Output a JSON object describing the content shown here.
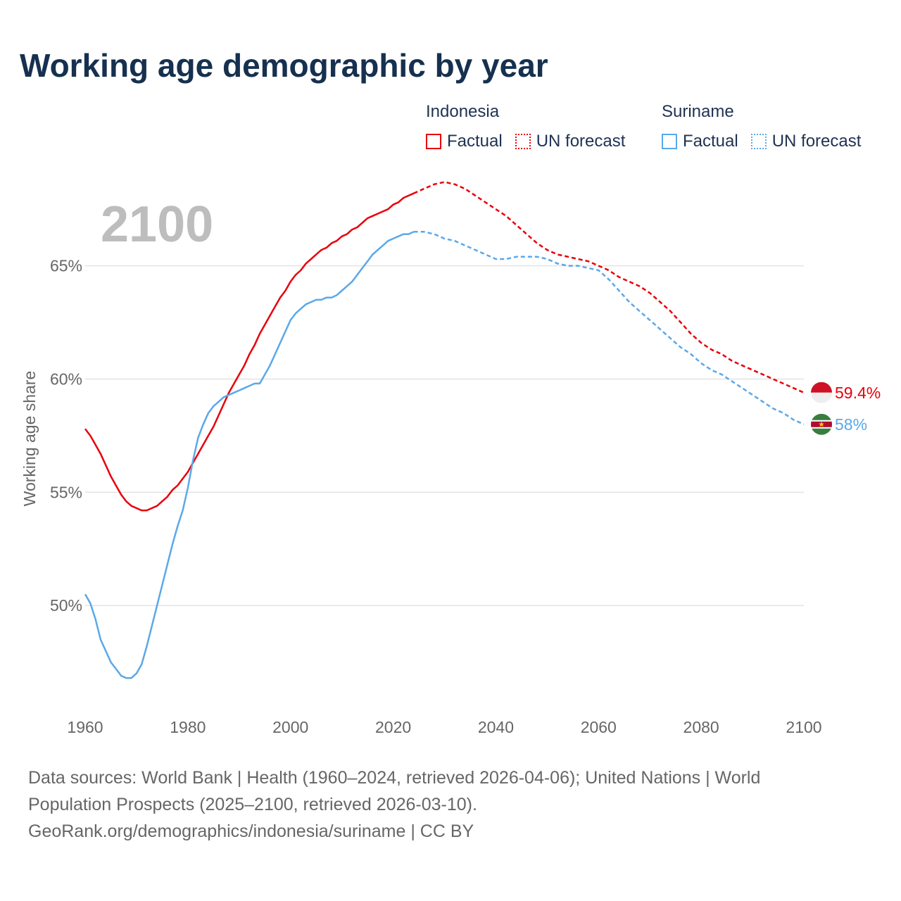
{
  "title": "Working age demographic by year",
  "legend": {
    "groups": [
      {
        "name": "Indonesia",
        "color": "#e8000b",
        "items": [
          {
            "label": "Factual",
            "style": "solid"
          },
          {
            "label": "UN forecast",
            "style": "dotted"
          }
        ]
      },
      {
        "name": "Suriname",
        "color": "#5ba8e8",
        "items": [
          {
            "label": "Factual",
            "style": "solid"
          },
          {
            "label": "UN forecast",
            "style": "dotted"
          }
        ]
      }
    ]
  },
  "year_label": "2100",
  "footer": {
    "line1": "Data sources: World Bank | Health (1960–2024, retrieved 2026-04-06); United Nations | World",
    "line2": "Population Prospects (2025–2100, retrieved 2026-03-10).",
    "line3": "GeoRank.org/demographics/indonesia/suriname | CC BY"
  },
  "chart_data": {
    "type": "line",
    "title": "Working age demographic by year",
    "xlabel": "",
    "ylabel": "Working age share",
    "xlim": [
      1960,
      2100
    ],
    "ylim": [
      45.5,
      68.5
    ],
    "grid": true,
    "x_ticks": [
      1960,
      1980,
      2000,
      2020,
      2040,
      2060,
      2080,
      2100
    ],
    "x_tick_labels": [
      "1960",
      "1980",
      "2000",
      "2020",
      "2040",
      "2060",
      "2080",
      "2100"
    ],
    "y_ticks": [
      50,
      55,
      60,
      65
    ],
    "y_tick_labels": [
      "50%",
      "55%",
      "60%",
      "65%"
    ],
    "forecast_start": 2024,
    "series": [
      {
        "name": "Indonesia",
        "color": "#e8000b",
        "end_label": "59.4%",
        "points": [
          [
            1960,
            57.8
          ],
          [
            1961,
            57.5
          ],
          [
            1962,
            57.1
          ],
          [
            1963,
            56.7
          ],
          [
            1964,
            56.2
          ],
          [
            1965,
            55.7
          ],
          [
            1966,
            55.3
          ],
          [
            1967,
            54.9
          ],
          [
            1968,
            54.6
          ],
          [
            1969,
            54.4
          ],
          [
            1970,
            54.3
          ],
          [
            1971,
            54.2
          ],
          [
            1972,
            54.2
          ],
          [
            1973,
            54.3
          ],
          [
            1974,
            54.4
          ],
          [
            1975,
            54.6
          ],
          [
            1976,
            54.8
          ],
          [
            1977,
            55.1
          ],
          [
            1978,
            55.3
          ],
          [
            1979,
            55.6
          ],
          [
            1980,
            55.9
          ],
          [
            1981,
            56.3
          ],
          [
            1982,
            56.7
          ],
          [
            1983,
            57.1
          ],
          [
            1984,
            57.5
          ],
          [
            1985,
            57.9
          ],
          [
            1986,
            58.4
          ],
          [
            1987,
            58.9
          ],
          [
            1988,
            59.4
          ],
          [
            1989,
            59.8
          ],
          [
            1990,
            60.2
          ],
          [
            1991,
            60.6
          ],
          [
            1992,
            61.1
          ],
          [
            1993,
            61.5
          ],
          [
            1994,
            62.0
          ],
          [
            1995,
            62.4
          ],
          [
            1996,
            62.8
          ],
          [
            1997,
            63.2
          ],
          [
            1998,
            63.6
          ],
          [
            1999,
            63.9
          ],
          [
            2000,
            64.3
          ],
          [
            2001,
            64.6
          ],
          [
            2002,
            64.8
          ],
          [
            2003,
            65.1
          ],
          [
            2004,
            65.3
          ],
          [
            2005,
            65.5
          ],
          [
            2006,
            65.7
          ],
          [
            2007,
            65.8
          ],
          [
            2008,
            66.0
          ],
          [
            2009,
            66.1
          ],
          [
            2010,
            66.3
          ],
          [
            2011,
            66.4
          ],
          [
            2012,
            66.6
          ],
          [
            2013,
            66.7
          ],
          [
            2014,
            66.9
          ],
          [
            2015,
            67.1
          ],
          [
            2016,
            67.2
          ],
          [
            2017,
            67.3
          ],
          [
            2018,
            67.4
          ],
          [
            2019,
            67.5
          ],
          [
            2020,
            67.7
          ],
          [
            2021,
            67.8
          ],
          [
            2022,
            68.0
          ],
          [
            2023,
            68.1
          ],
          [
            2024,
            68.2
          ],
          [
            2026,
            68.4
          ],
          [
            2028,
            68.6
          ],
          [
            2030,
            68.7
          ],
          [
            2032,
            68.6
          ],
          [
            2034,
            68.4
          ],
          [
            2036,
            68.1
          ],
          [
            2038,
            67.8
          ],
          [
            2040,
            67.5
          ],
          [
            2042,
            67.2
          ],
          [
            2044,
            66.8
          ],
          [
            2046,
            66.4
          ],
          [
            2048,
            66.0
          ],
          [
            2050,
            65.7
          ],
          [
            2052,
            65.5
          ],
          [
            2054,
            65.4
          ],
          [
            2056,
            65.3
          ],
          [
            2058,
            65.2
          ],
          [
            2060,
            65.0
          ],
          [
            2062,
            64.8
          ],
          [
            2064,
            64.5
          ],
          [
            2066,
            64.3
          ],
          [
            2068,
            64.1
          ],
          [
            2070,
            63.8
          ],
          [
            2072,
            63.4
          ],
          [
            2074,
            63.0
          ],
          [
            2076,
            62.5
          ],
          [
            2078,
            62.0
          ],
          [
            2080,
            61.6
          ],
          [
            2082,
            61.3
          ],
          [
            2084,
            61.1
          ],
          [
            2086,
            60.8
          ],
          [
            2088,
            60.6
          ],
          [
            2090,
            60.4
          ],
          [
            2092,
            60.2
          ],
          [
            2094,
            60.0
          ],
          [
            2096,
            59.8
          ],
          [
            2098,
            59.6
          ],
          [
            2100,
            59.4
          ]
        ]
      },
      {
        "name": "Suriname",
        "color": "#5ba8e8",
        "end_label": "58%",
        "points": [
          [
            1960,
            50.5
          ],
          [
            1961,
            50.1
          ],
          [
            1962,
            49.4
          ],
          [
            1963,
            48.5
          ],
          [
            1964,
            48.0
          ],
          [
            1965,
            47.5
          ],
          [
            1966,
            47.2
          ],
          [
            1967,
            46.9
          ],
          [
            1968,
            46.8
          ],
          [
            1969,
            46.8
          ],
          [
            1970,
            47.0
          ],
          [
            1971,
            47.4
          ],
          [
            1972,
            48.2
          ],
          [
            1973,
            49.1
          ],
          [
            1974,
            50.0
          ],
          [
            1975,
            50.9
          ],
          [
            1976,
            51.8
          ],
          [
            1977,
            52.7
          ],
          [
            1978,
            53.5
          ],
          [
            1979,
            54.2
          ],
          [
            1980,
            55.2
          ],
          [
            1981,
            56.4
          ],
          [
            1982,
            57.4
          ],
          [
            1983,
            58.0
          ],
          [
            1984,
            58.5
          ],
          [
            1985,
            58.8
          ],
          [
            1986,
            59.0
          ],
          [
            1987,
            59.2
          ],
          [
            1988,
            59.3
          ],
          [
            1989,
            59.4
          ],
          [
            1990,
            59.5
          ],
          [
            1991,
            59.6
          ],
          [
            1992,
            59.7
          ],
          [
            1993,
            59.8
          ],
          [
            1994,
            59.8
          ],
          [
            1995,
            60.2
          ],
          [
            1996,
            60.6
          ],
          [
            1997,
            61.1
          ],
          [
            1998,
            61.6
          ],
          [
            1999,
            62.1
          ],
          [
            2000,
            62.6
          ],
          [
            2001,
            62.9
          ],
          [
            2002,
            63.1
          ],
          [
            2003,
            63.3
          ],
          [
            2004,
            63.4
          ],
          [
            2005,
            63.5
          ],
          [
            2006,
            63.5
          ],
          [
            2007,
            63.6
          ],
          [
            2008,
            63.6
          ],
          [
            2009,
            63.7
          ],
          [
            2010,
            63.9
          ],
          [
            2011,
            64.1
          ],
          [
            2012,
            64.3
          ],
          [
            2013,
            64.6
          ],
          [
            2014,
            64.9
          ],
          [
            2015,
            65.2
          ],
          [
            2016,
            65.5
          ],
          [
            2017,
            65.7
          ],
          [
            2018,
            65.9
          ],
          [
            2019,
            66.1
          ],
          [
            2020,
            66.2
          ],
          [
            2021,
            66.3
          ],
          [
            2022,
            66.4
          ],
          [
            2023,
            66.4
          ],
          [
            2024,
            66.5
          ],
          [
            2026,
            66.5
          ],
          [
            2028,
            66.4
          ],
          [
            2030,
            66.2
          ],
          [
            2032,
            66.1
          ],
          [
            2034,
            65.9
          ],
          [
            2036,
            65.7
          ],
          [
            2038,
            65.5
          ],
          [
            2040,
            65.3
          ],
          [
            2042,
            65.3
          ],
          [
            2044,
            65.4
          ],
          [
            2046,
            65.4
          ],
          [
            2048,
            65.4
          ],
          [
            2050,
            65.3
          ],
          [
            2052,
            65.1
          ],
          [
            2054,
            65.0
          ],
          [
            2056,
            65.0
          ],
          [
            2058,
            64.9
          ],
          [
            2060,
            64.8
          ],
          [
            2062,
            64.4
          ],
          [
            2064,
            63.9
          ],
          [
            2066,
            63.4
          ],
          [
            2068,
            63.0
          ],
          [
            2070,
            62.6
          ],
          [
            2072,
            62.2
          ],
          [
            2074,
            61.8
          ],
          [
            2076,
            61.4
          ],
          [
            2078,
            61.1
          ],
          [
            2080,
            60.7
          ],
          [
            2082,
            60.4
          ],
          [
            2084,
            60.2
          ],
          [
            2086,
            59.9
          ],
          [
            2088,
            59.6
          ],
          [
            2090,
            59.3
          ],
          [
            2092,
            59.0
          ],
          [
            2094,
            58.7
          ],
          [
            2096,
            58.5
          ],
          [
            2098,
            58.2
          ],
          [
            2100,
            58.0
          ]
        ]
      }
    ]
  }
}
